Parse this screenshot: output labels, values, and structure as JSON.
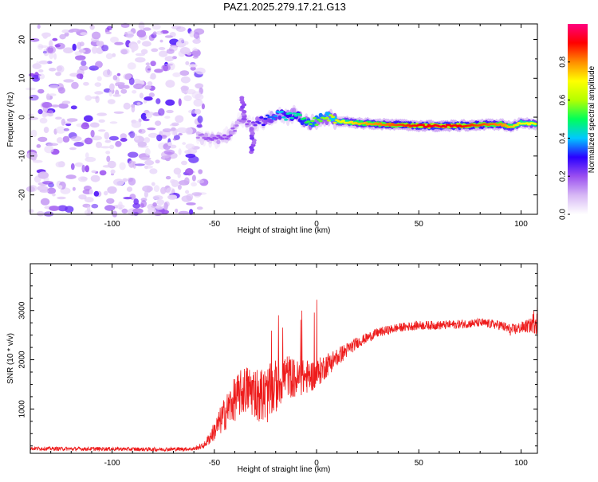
{
  "chart_data": [
    {
      "type": "heatmap",
      "title": "PAZ1.2025.279.17.21.G13",
      "xlabel": "Height of straight line (km)",
      "ylabel": "Frequency (Hz)",
      "xlim": [
        -140,
        108
      ],
      "ylim": [
        -25,
        24
      ],
      "xticks": [
        -100,
        -50,
        0,
        50,
        100
      ],
      "yticks": [
        20,
        10,
        0,
        -10,
        -20
      ],
      "grid": false,
      "colorbar": {
        "label": "Normalized spectral amplitude",
        "range": [
          0,
          1
        ],
        "ticks": [
          0.0,
          0.2,
          0.4,
          0.6,
          0.8
        ],
        "tick_labels": [
          "0.0",
          "0.2",
          "0.4",
          "0.6",
          "0.8"
        ],
        "colors": [
          "#ffffff",
          "#d7b8f5",
          "#9a4ff0",
          "#2a00ff",
          "#00c8ff",
          "#00ff5a",
          "#b4ff00",
          "#ffff00",
          "#ff8c00",
          "#ff0000",
          "#ff0080"
        ]
      },
      "noise_region_x": [
        -140,
        -55
      ],
      "track": {
        "x": [
          -58,
          -52,
          -46,
          -42,
          -38,
          -35,
          -32,
          -29,
          -26,
          -22,
          -18,
          -14,
          -10,
          -6,
          -2,
          2,
          6,
          10,
          20,
          30,
          40,
          50,
          60,
          70,
          80,
          90,
          95,
          100,
          108
        ],
        "freq": [
          -5,
          -6,
          -5.5,
          -4,
          -1,
          -0.5,
          -2.5,
          -1.5,
          -1,
          0,
          0.5,
          0,
          1,
          -1,
          -1.5,
          -0.5,
          0,
          -1,
          -1.5,
          -1.8,
          -2,
          -2.2,
          -2.3,
          -2.2,
          -2,
          -1.8,
          -2.5,
          -1.5,
          -1.8
        ],
        "amplitude": [
          0.15,
          0.2,
          0.2,
          0.2,
          0.15,
          0.2,
          0.2,
          0.25,
          0.3,
          0.35,
          0.4,
          0.45,
          0.45,
          0.5,
          0.55,
          0.55,
          0.6,
          0.65,
          0.75,
          0.8,
          0.85,
          0.9,
          0.92,
          0.9,
          0.85,
          0.8,
          0.75,
          0.7,
          0.7
        ]
      }
    },
    {
      "type": "line",
      "xlabel": "Height of straight line (km)",
      "ylabel": "SNR (10 * v/v)",
      "xlim": [
        -140,
        108
      ],
      "ylim": [
        100,
        3950
      ],
      "xticks": [
        -100,
        -50,
        0,
        50,
        100
      ],
      "yticks": [
        1000,
        2000,
        3000
      ],
      "grid": false,
      "series": [
        {
          "name": "SNR",
          "color": "#ee1c1c",
          "x": [
            -140,
            -120,
            -100,
            -80,
            -60,
            -55,
            -50,
            -45,
            -40,
            -35,
            -30,
            -25,
            -20,
            -15,
            -10,
            -5,
            0,
            5,
            10,
            15,
            20,
            25,
            30,
            40,
            50,
            60,
            70,
            80,
            90,
            95,
            100,
            105,
            108
          ],
          "y": [
            200,
            190,
            190,
            180,
            190,
            260,
            550,
            900,
            1200,
            1400,
            1350,
            1250,
            1450,
            1700,
            1600,
            1650,
            1700,
            1900,
            2050,
            2200,
            2350,
            2450,
            2550,
            2650,
            2700,
            2700,
            2720,
            2750,
            2700,
            2600,
            2650,
            2700,
            2900
          ],
          "noise": [
            40,
            40,
            40,
            40,
            40,
            60,
            200,
            350,
            450,
            500,
            550,
            600,
            550,
            450,
            400,
            350,
            300,
            250,
            200,
            150,
            120,
            100,
            100,
            90,
            90,
            90,
            90,
            90,
            100,
            120,
            120,
            150,
            400
          ]
        }
      ]
    }
  ]
}
